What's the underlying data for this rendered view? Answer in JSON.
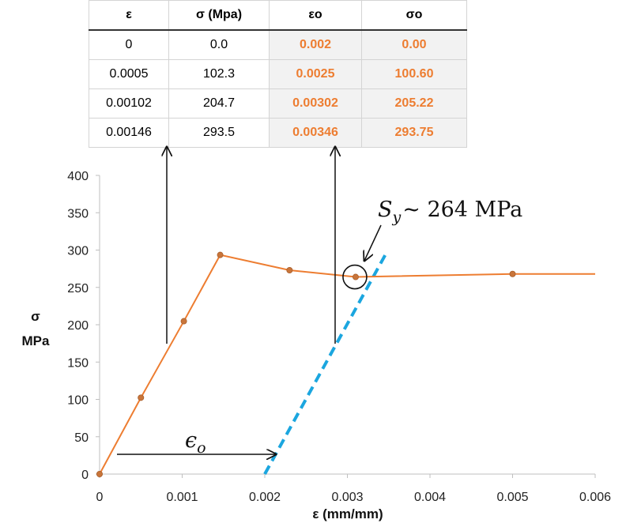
{
  "table": {
    "headers": [
      "ε",
      "σ (Mpa)",
      "εo",
      "σo"
    ],
    "rows": [
      [
        "0",
        "0.0",
        "0.002",
        "0.00"
      ],
      [
        "0.0005",
        "102.3",
        "0.0025",
        "100.60"
      ],
      [
        "0.00102",
        "204.7",
        "0.00302",
        "205.22"
      ],
      [
        "0.00146",
        "293.5",
        "0.00346",
        "293.75"
      ]
    ]
  },
  "chart_data": {
    "type": "line",
    "xlabel": "ε (mm/mm)",
    "ylabel_line1": "σ",
    "ylabel_line2": "MPa",
    "xlim": [
      0,
      0.006
    ],
    "ylim": [
      0,
      400
    ],
    "x_ticks": [
      "0",
      "0.001",
      "0.002",
      "0.003",
      "0.004",
      "0.005",
      "0.006"
    ],
    "y_ticks": [
      "0",
      "50",
      "100",
      "150",
      "200",
      "250",
      "300",
      "350",
      "400"
    ],
    "grid": false,
    "series": [
      {
        "x": [
          0,
          0.0005,
          0.00102,
          0.00146,
          0.0023,
          0.0031,
          0.005,
          0.006
        ],
        "y": [
          0,
          102.3,
          204.7,
          293.5,
          273,
          264,
          268,
          268
        ],
        "markers": [
          true,
          true,
          true,
          true,
          true,
          true,
          true,
          false
        ],
        "color": "#ed7d31"
      }
    ],
    "offset_line": {
      "x": [
        0.002,
        0.00346
      ],
      "y": [
        0,
        293.75
      ],
      "color": "#1ba6df"
    },
    "annotations": {
      "yield_label": "Sy ~ 264 MPa",
      "yield_label_main": "S",
      "yield_label_sub": "y",
      "yield_label_rest": "~ 264 MPa",
      "offset_label_main": "ϵ",
      "offset_label_sub": "o",
      "yield_point": {
        "x": 0.0031,
        "y": 264
      }
    }
  }
}
